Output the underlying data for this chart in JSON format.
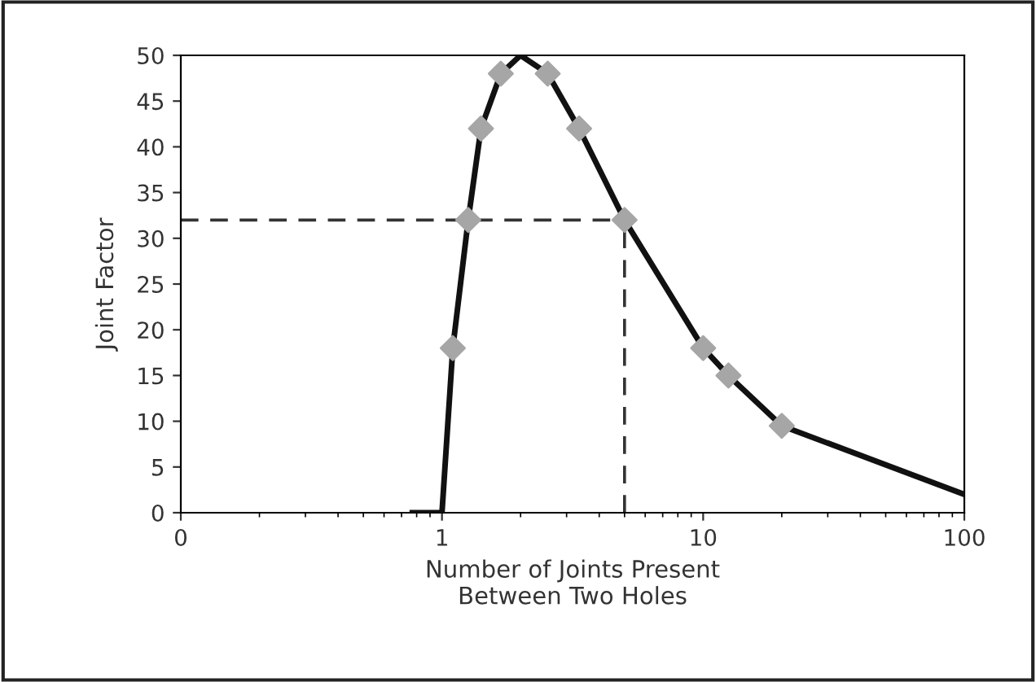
{
  "chart_data": {
    "type": "line",
    "xlabel": "Number of Joints Present\nBetween Two Holes",
    "ylabel": "Joint Factor",
    "log": "x",
    "xlim": [
      0.1,
      100
    ],
    "xticks": [
      {
        "value": 0.1,
        "label": "0"
      },
      1,
      10,
      100
    ],
    "ylim": [
      0,
      50
    ],
    "yticks": [
      0,
      5,
      10,
      15,
      20,
      25,
      30,
      35,
      40,
      45,
      50
    ],
    "grid": false,
    "series": [
      {
        "color": "#111111",
        "marker": "none",
        "x": [
          0.77,
          1.0,
          1.1,
          1.26,
          1.41,
          1.68,
          2.0,
          2.54,
          3.35,
          5.0,
          10,
          12.5,
          20,
          100
        ],
        "values": [
          0,
          0,
          18,
          32,
          42,
          48,
          50,
          48,
          42,
          32,
          18,
          15,
          9.5,
          2
        ]
      },
      {
        "type": "scatter",
        "color": "#a6a6a6",
        "marker": "diamond",
        "x": [
          1.1,
          1.26,
          1.41,
          1.68,
          2.54,
          3.35,
          5.0,
          10,
          12.5,
          20
        ],
        "values": [
          18,
          32,
          42,
          48,
          48,
          42,
          32,
          18,
          15,
          9.5
        ]
      }
    ],
    "ref_lines": [
      {
        "axis": "y",
        "value": 32,
        "color": "#333333",
        "line_style": "dashed"
      },
      {
        "axis": "x",
        "value": 5.0,
        "color": "#333333",
        "line_style": "dashed"
      }
    ]
  }
}
